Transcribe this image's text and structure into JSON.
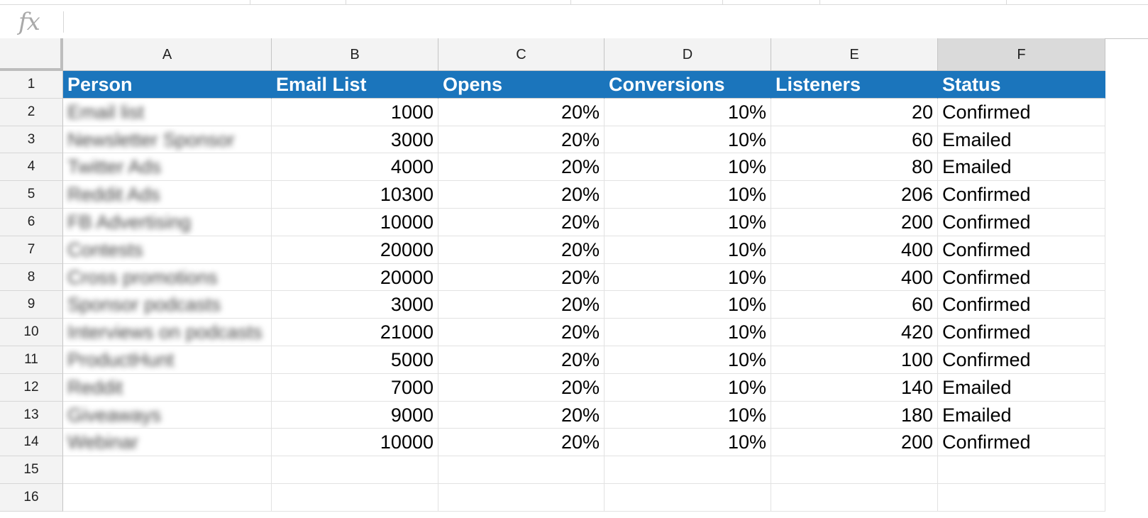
{
  "formula_bar": {
    "icon": "fx",
    "value": ""
  },
  "column_headers": [
    "A",
    "B",
    "C",
    "D",
    "E",
    "F"
  ],
  "selected_column": "F",
  "row_numbers": [
    "1",
    "2",
    "3",
    "4",
    "5",
    "6",
    "7",
    "8",
    "9",
    "10",
    "11",
    "12",
    "13",
    "14",
    "15",
    "16"
  ],
  "header_row": [
    "Person",
    "Email List",
    "Opens",
    "Conversions",
    "Listeners",
    "Status"
  ],
  "header_color": "#1b75bc",
  "rows": [
    [
      "Email list",
      "1000",
      "20%",
      "10%",
      "20",
      "Confirmed"
    ],
    [
      "Newsletter Sponsor",
      "3000",
      "20%",
      "10%",
      "60",
      "Emailed"
    ],
    [
      "Twitter Ads",
      "4000",
      "20%",
      "10%",
      "80",
      "Emailed"
    ],
    [
      "Reddit Ads",
      "10300",
      "20%",
      "10%",
      "206",
      "Confirmed"
    ],
    [
      "FB Advertising",
      "10000",
      "20%",
      "10%",
      "200",
      "Confirmed"
    ],
    [
      "Contests",
      "20000",
      "20%",
      "10%",
      "400",
      "Confirmed"
    ],
    [
      "Cross promotions",
      "20000",
      "20%",
      "10%",
      "400",
      "Confirmed"
    ],
    [
      "Sponsor podcasts",
      "3000",
      "20%",
      "10%",
      "60",
      "Confirmed"
    ],
    [
      "Interviews on podcasts",
      "21000",
      "20%",
      "10%",
      "420",
      "Confirmed"
    ],
    [
      "ProductHunt",
      "5000",
      "20%",
      "10%",
      "100",
      "Confirmed"
    ],
    [
      "Reddit",
      "7000",
      "20%",
      "10%",
      "140",
      "Emailed"
    ],
    [
      "Giveaways",
      "9000",
      "20%",
      "10%",
      "180",
      "Emailed"
    ],
    [
      "Webinar",
      "10000",
      "20%",
      "10%",
      "200",
      "Confirmed"
    ],
    [
      "",
      "",
      "",
      "",
      "",
      ""
    ],
    [
      "",
      "",
      "",
      "",
      "",
      ""
    ]
  ]
}
